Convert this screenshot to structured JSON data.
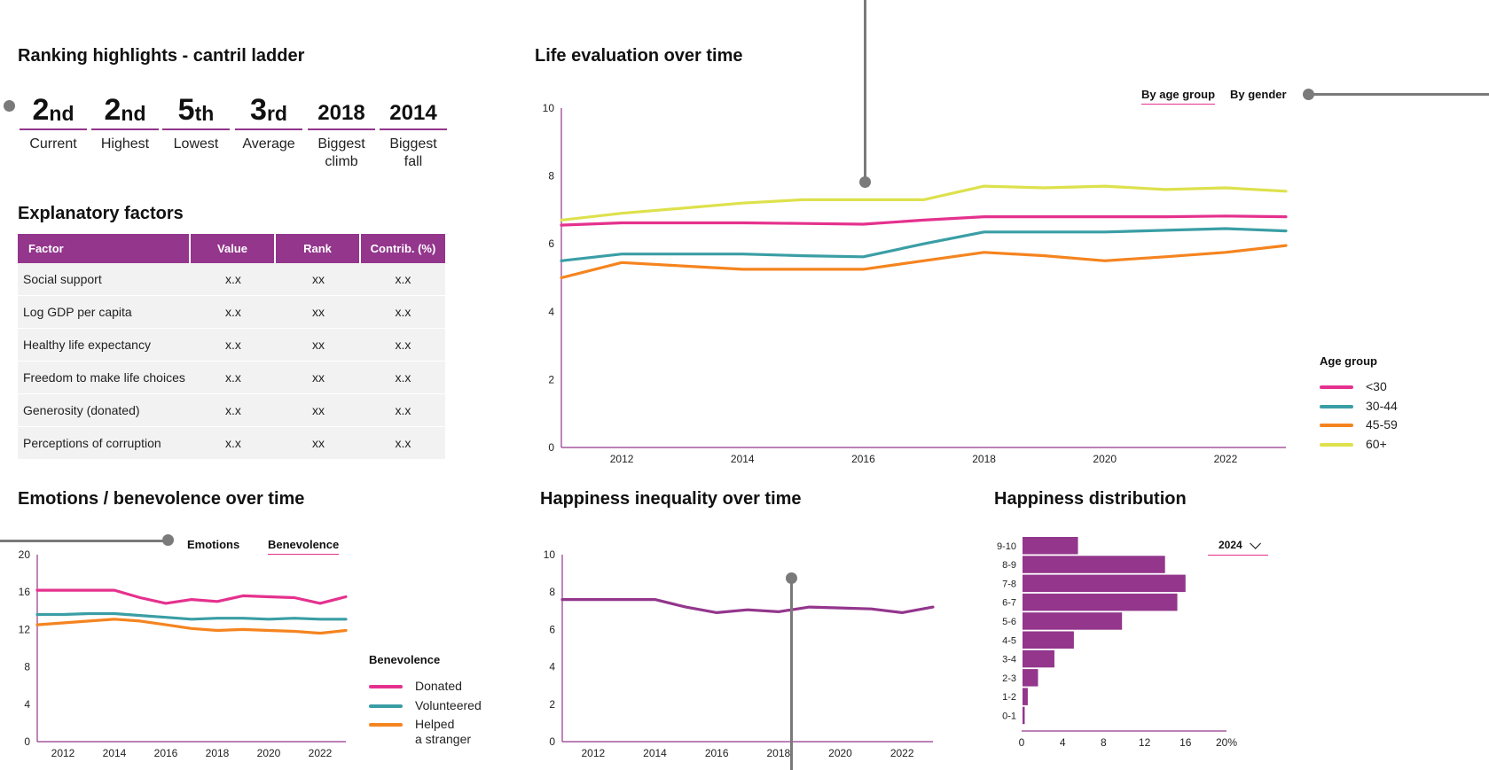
{
  "ranking": {
    "title": "Ranking highlights - cantril ladder",
    "items": [
      {
        "num": "2",
        "suffix": "nd",
        "label": "Current"
      },
      {
        "num": "2",
        "suffix": "nd",
        "label": "Highest"
      },
      {
        "num": "5",
        "suffix": "th",
        "label": "Lowest"
      },
      {
        "num": "3",
        "suffix": "rd",
        "label": "Average"
      },
      {
        "num": "2018",
        "suffix": "",
        "label": "Biggest\nclimb"
      },
      {
        "num": "2014",
        "suffix": "",
        "label": "Biggest\nfall"
      }
    ]
  },
  "factors": {
    "title": "Explanatory factors",
    "headers": [
      "Factor",
      "Value",
      "Rank",
      "Contrib. (%)"
    ],
    "rows": [
      [
        "Social support",
        "x.x",
        "xx",
        "x.x"
      ],
      [
        "Log GDP per capita",
        "x.x",
        "xx",
        "x.x"
      ],
      [
        "Healthy life expectancy",
        "x.x",
        "xx",
        "x.x"
      ],
      [
        "Freedom to make life choices",
        "x.x",
        "xx",
        "x.x"
      ],
      [
        "Generosity (donated)",
        "x.x",
        "xx",
        "x.x"
      ],
      [
        "Perceptions of corruption",
        "x.x",
        "xx",
        "x.x"
      ]
    ]
  },
  "life_eval": {
    "title": "Life evaluation over time",
    "tabs": [
      "By age group",
      "By gender"
    ],
    "active_tab": 0,
    "legend_title": "Age group"
  },
  "emotions": {
    "title": "Emotions / benevolence over time",
    "tabs": [
      "Emotions",
      "Benevolence"
    ],
    "active_tab": 1,
    "legend_title": "Benevolence"
  },
  "inequality": {
    "title": "Happiness inequality over time"
  },
  "distribution": {
    "title": "Happiness distribution",
    "year": "2024"
  },
  "colors": {
    "accent": "#93368c",
    "pink": "#e5318e",
    "teal": "#3a9ea5",
    "orange": "#f5841f",
    "yellow": "#dde14c",
    "purple": "#93368c",
    "gray": "#7a7a7a"
  },
  "chart_data": [
    {
      "type": "line",
      "title": "Life evaluation over time",
      "x": [
        2011,
        2012,
        2013,
        2014,
        2015,
        2016,
        2017,
        2018,
        2019,
        2020,
        2021,
        2022,
        2023
      ],
      "xticks": [
        2012,
        2014,
        2016,
        2018,
        2020,
        2022
      ],
      "yticks": [
        0,
        2,
        4,
        6,
        8,
        10
      ],
      "xlim": [
        2011,
        2023
      ],
      "ylim": [
        0,
        10
      ],
      "series": [
        {
          "name": "<30",
          "color": "#e5318e",
          "values": [
            6.55,
            6.62,
            6.62,
            6.62,
            6.6,
            6.58,
            6.7,
            6.8,
            6.8,
            6.8,
            6.8,
            6.82,
            6.8
          ]
        },
        {
          "name": "30-44",
          "color": "#3a9ea5",
          "values": [
            5.5,
            5.7,
            5.7,
            5.7,
            5.65,
            5.62,
            6.0,
            6.35,
            6.35,
            6.35,
            6.4,
            6.45,
            6.38
          ]
        },
        {
          "name": "45-59",
          "color": "#f5841f",
          "values": [
            5.0,
            5.45,
            5.35,
            5.25,
            5.25,
            5.25,
            5.5,
            5.75,
            5.65,
            5.5,
            5.62,
            5.75,
            5.95
          ]
        },
        {
          "name": "60+",
          "color": "#dde14c",
          "values": [
            6.7,
            6.9,
            7.05,
            7.2,
            7.3,
            7.3,
            7.3,
            7.7,
            7.65,
            7.7,
            7.6,
            7.65,
            7.55
          ]
        }
      ]
    },
    {
      "type": "line",
      "title": "Emotions / benevolence over time",
      "x": [
        2011,
        2012,
        2013,
        2014,
        2015,
        2016,
        2017,
        2018,
        2019,
        2020,
        2021,
        2022,
        2023
      ],
      "xticks": [
        2012,
        2014,
        2016,
        2018,
        2020,
        2022
      ],
      "yticks": [
        0,
        4,
        8,
        12,
        16,
        20
      ],
      "xlim": [
        2011,
        2023
      ],
      "ylim": [
        0,
        20
      ],
      "series": [
        {
          "name": "Donated",
          "color": "#e5318e",
          "values": [
            16.2,
            16.2,
            16.2,
            16.2,
            15.4,
            14.8,
            15.2,
            15.0,
            15.6,
            15.5,
            15.4,
            14.8,
            15.5
          ]
        },
        {
          "name": "Volunteered",
          "color": "#3a9ea5",
          "values": [
            13.6,
            13.6,
            13.7,
            13.7,
            13.5,
            13.3,
            13.1,
            13.2,
            13.2,
            13.1,
            13.2,
            13.1,
            13.1
          ]
        },
        {
          "name": "Helped\na stranger",
          "color": "#f5841f",
          "values": [
            12.5,
            12.7,
            12.9,
            13.1,
            12.9,
            12.5,
            12.1,
            11.9,
            12.0,
            11.9,
            11.8,
            11.6,
            11.9
          ]
        }
      ]
    },
    {
      "type": "line",
      "title": "Happiness inequality over time",
      "x": [
        2011,
        2012,
        2013,
        2014,
        2015,
        2016,
        2017,
        2018,
        2019,
        2020,
        2021,
        2022,
        2023
      ],
      "xticks": [
        2012,
        2014,
        2016,
        2018,
        2020,
        2022
      ],
      "yticks": [
        0,
        2,
        4,
        6,
        8,
        10
      ],
      "xlim": [
        2011,
        2023
      ],
      "ylim": [
        0,
        10
      ],
      "series": [
        {
          "color": "#93368c",
          "values": [
            7.6,
            7.6,
            7.6,
            7.6,
            7.2,
            6.9,
            7.05,
            6.95,
            7.2,
            7.15,
            7.1,
            6.9,
            7.2
          ]
        }
      ]
    },
    {
      "type": "bar",
      "orientation": "horizontal",
      "title": "Happiness distribution",
      "categories": [
        "9-10",
        "8-9",
        "7-8",
        "6-7",
        "5-6",
        "4-5",
        "3-4",
        "2-3",
        "1-2",
        "0-1"
      ],
      "values": [
        5.5,
        14.0,
        16.0,
        15.2,
        9.8,
        5.1,
        3.2,
        1.6,
        0.6,
        0.3
      ],
      "xticks": [
        "0",
        "4",
        "8",
        "12",
        "16",
        "20%"
      ],
      "xlim": [
        0,
        20
      ],
      "color": "#93368c"
    }
  ]
}
